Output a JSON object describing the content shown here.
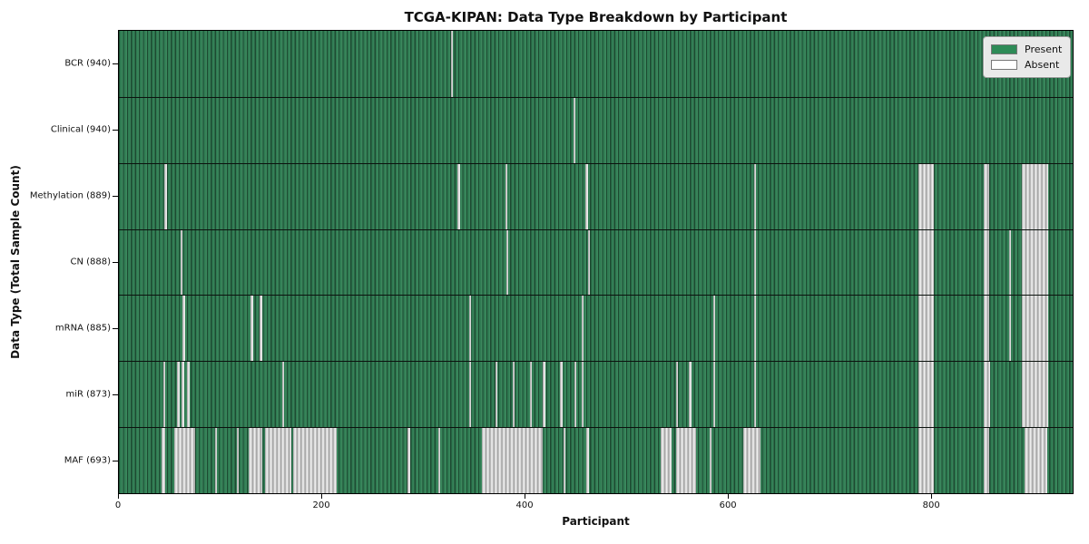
{
  "title": "TCGA-KIPAN: Data Type Breakdown by Participant",
  "axes": {
    "xlabel": "Participant",
    "ylabel": "Data Type (Total Sample Count)"
  },
  "legend": {
    "present_label": "Present",
    "absent_label": "Absent"
  },
  "colors": {
    "present_green": "#2e8b57",
    "present_edge_dark": "#1d4a31",
    "absent_white": "#f7f7f7",
    "absent_gray": "#9d9d9d",
    "legend_bg": "#e9e9e9",
    "axis_black": "#000000"
  },
  "chart_data": {
    "type": "heatmap",
    "title": "TCGA-KIPAN: Data Type Breakdown by Participant",
    "xlabel": "Participant",
    "ylabel": "Data Type (Total Sample Count)",
    "x_range": [
      0,
      940
    ],
    "x_ticks": [
      0,
      200,
      400,
      600,
      800
    ],
    "legend": [
      "Present",
      "Absent"
    ],
    "legend_position": "upper right",
    "total_participants": 940,
    "rows": [
      {
        "label": "BCR (940)",
        "data_type": "BCR",
        "present_count": 940,
        "absent_segments": [
          [
            327,
            329
          ]
        ]
      },
      {
        "label": "Clinical (940)",
        "data_type": "Clinical",
        "present_count": 940,
        "absent_segments": [
          [
            448,
            450
          ]
        ]
      },
      {
        "label": "Methylation (889)",
        "data_type": "Methylation",
        "present_count": 889,
        "absent_segments": [
          [
            45,
            47
          ],
          [
            334,
            336
          ],
          [
            381,
            383
          ],
          [
            460,
            462
          ],
          [
            626,
            628
          ],
          [
            788,
            803
          ],
          [
            852,
            858
          ],
          [
            890,
            916
          ]
        ]
      },
      {
        "label": "CN (888)",
        "data_type": "CN",
        "present_count": 888,
        "absent_segments": [
          [
            61,
            63
          ],
          [
            382,
            384
          ],
          [
            462,
            464
          ],
          [
            626,
            628
          ],
          [
            788,
            803
          ],
          [
            852,
            858
          ],
          [
            877,
            879
          ],
          [
            890,
            916
          ]
        ]
      },
      {
        "label": "mRNA (885)",
        "data_type": "mRNA",
        "present_count": 885,
        "absent_segments": [
          [
            63,
            65
          ],
          [
            130,
            132
          ],
          [
            139,
            141
          ],
          [
            345,
            347
          ],
          [
            456,
            458
          ],
          [
            586,
            588
          ],
          [
            626,
            628
          ],
          [
            788,
            803
          ],
          [
            852,
            858
          ],
          [
            877,
            879
          ],
          [
            890,
            916
          ]
        ]
      },
      {
        "label": "miR (873)",
        "data_type": "miR",
        "present_count": 873,
        "absent_segments": [
          [
            44,
            46
          ],
          [
            57,
            60
          ],
          [
            62,
            64
          ],
          [
            67,
            70
          ],
          [
            161,
            163
          ],
          [
            345,
            347
          ],
          [
            371,
            373
          ],
          [
            388,
            390
          ],
          [
            405,
            407
          ],
          [
            418,
            420
          ],
          [
            435,
            437
          ],
          [
            449,
            451
          ],
          [
            456,
            458
          ],
          [
            549,
            551
          ],
          [
            562,
            564
          ],
          [
            586,
            588
          ],
          [
            626,
            628
          ],
          [
            788,
            803
          ],
          [
            852,
            859
          ],
          [
            890,
            916
          ]
        ]
      },
      {
        "label": "MAF (693)",
        "data_type": "MAF",
        "present_count": 693,
        "absent_segments": [
          [
            42,
            46
          ],
          [
            55,
            75
          ],
          [
            95,
            97
          ],
          [
            116,
            118
          ],
          [
            128,
            141
          ],
          [
            144,
            170
          ],
          [
            172,
            215
          ],
          [
            284,
            287
          ],
          [
            315,
            317
          ],
          [
            358,
            418
          ],
          [
            438,
            440
          ],
          [
            461,
            463
          ],
          [
            534,
            545
          ],
          [
            549,
            569
          ],
          [
            582,
            584
          ],
          [
            615,
            632
          ],
          [
            788,
            803
          ],
          [
            852,
            858
          ],
          [
            893,
            915
          ]
        ]
      }
    ]
  }
}
